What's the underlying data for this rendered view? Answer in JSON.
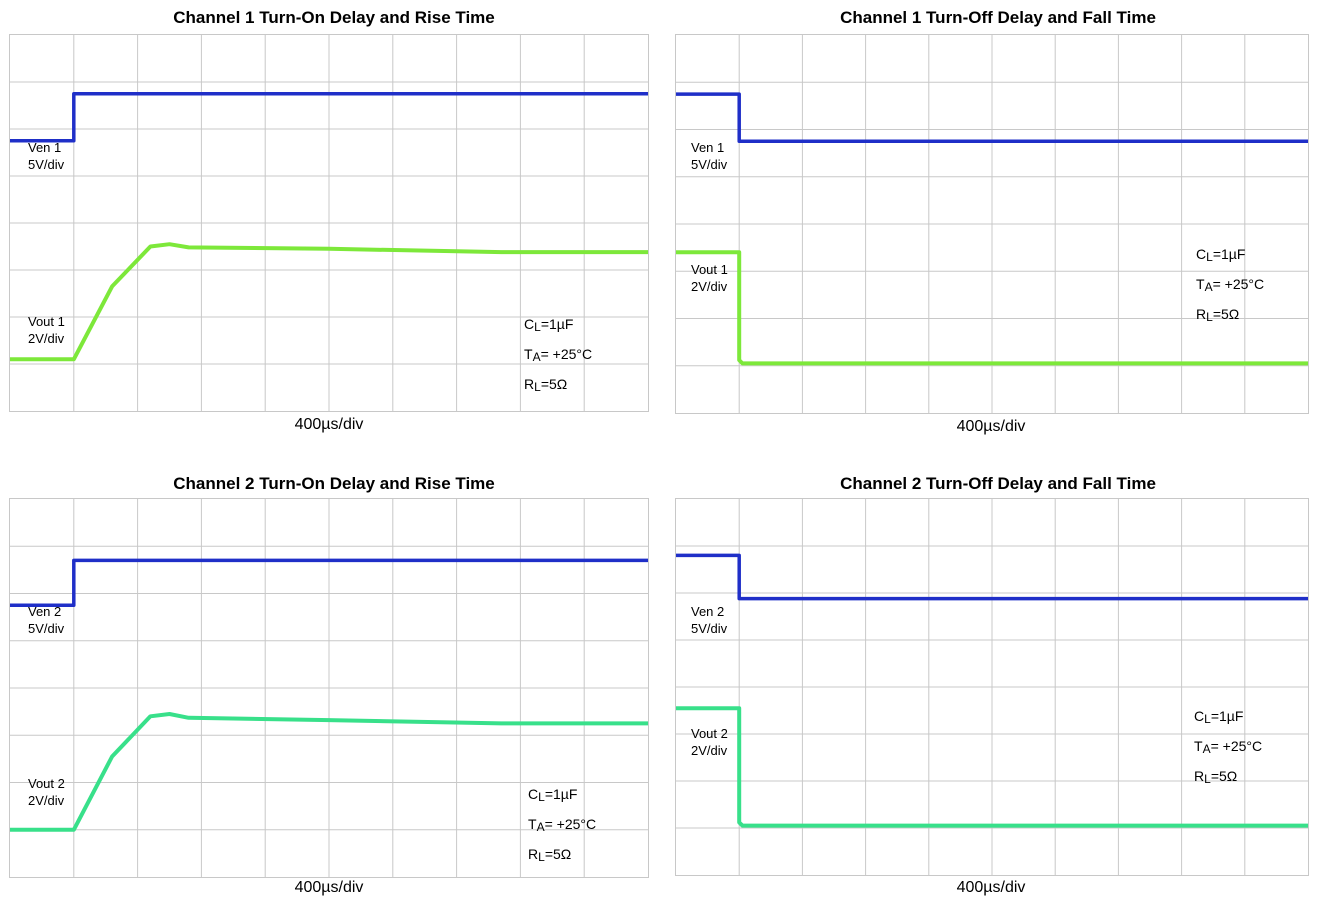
{
  "colors": {
    "ven": "#1f2fc8",
    "vout_green": "#7de83a",
    "vout_teal": "#38e08a",
    "grid": "#c8c8c8"
  },
  "chart_data": [
    {
      "type": "line",
      "title": "Channel 1 Turn-On Delay and Rise Time",
      "xlabel": "400µs/div",
      "xlim_div": [
        0,
        10
      ],
      "ylim_div": [
        0,
        8
      ],
      "grid": true,
      "series": [
        {
          "name": "Ven 1",
          "scale": "5V/div",
          "points": [
            [
              0,
              5.75
            ],
            [
              1,
              5.75
            ],
            [
              1,
              6.75
            ],
            [
              10,
              6.75
            ]
          ]
        },
        {
          "name": "Vout 1",
          "scale": "2V/div",
          "points": [
            [
              0,
              1.1
            ],
            [
              1,
              1.1
            ],
            [
              1.6,
              2.65
            ],
            [
              2.2,
              3.5
            ],
            [
              2.5,
              3.55
            ],
            [
              2.8,
              3.48
            ],
            [
              5,
              3.45
            ],
            [
              7.7,
              3.38
            ],
            [
              10,
              3.38
            ]
          ]
        }
      ],
      "labels": {
        "ven_name": "Ven 1",
        "ven_scale": "5V/div",
        "vout_name": "Vout 1",
        "vout_scale": "2V/div"
      },
      "conditions": {
        "cl": "1µF",
        "ta": "+25°C",
        "rl": "5Ω"
      }
    },
    {
      "type": "line",
      "title": "Channel 1 Turn-Off Delay and Fall Time",
      "xlabel": "400µs/div",
      "xlim_div": [
        0,
        10
      ],
      "ylim_div": [
        0,
        8
      ],
      "grid": true,
      "series": [
        {
          "name": "Ven 1",
          "scale": "5V/div",
          "points": [
            [
              0,
              6.75
            ],
            [
              1,
              6.75
            ],
            [
              1,
              5.75
            ],
            [
              10,
              5.75
            ]
          ]
        },
        {
          "name": "Vout 1",
          "scale": "2V/div",
          "points": [
            [
              0,
              3.4
            ],
            [
              1,
              3.4
            ],
            [
              1,
              1.12
            ],
            [
              1.05,
              1.05
            ],
            [
              10,
              1.05
            ]
          ]
        }
      ],
      "labels": {
        "ven_name": "Ven 1",
        "ven_scale": "5V/div",
        "vout_name": "Vout 1",
        "vout_scale": "2V/div"
      },
      "conditions": {
        "cl": "1µF",
        "ta": "+25°C",
        "rl": "5Ω"
      }
    },
    {
      "type": "line",
      "title": "Channel 2 Turn-On Delay and Rise Time",
      "xlabel": "400µs/div",
      "xlim_div": [
        0,
        10
      ],
      "ylim_div": [
        0,
        8
      ],
      "grid": true,
      "series": [
        {
          "name": "Ven 2",
          "scale": "5V/div",
          "points": [
            [
              0,
              5.75
            ],
            [
              1,
              5.75
            ],
            [
              1,
              6.7
            ],
            [
              10,
              6.7
            ]
          ]
        },
        {
          "name": "Vout 2",
          "scale": "2V/div",
          "points": [
            [
              0,
              1.0
            ],
            [
              1,
              1.0
            ],
            [
              1.6,
              2.55
            ],
            [
              2.2,
              3.4
            ],
            [
              2.5,
              3.45
            ],
            [
              2.8,
              3.37
            ],
            [
              5,
              3.32
            ],
            [
              7.7,
              3.25
            ],
            [
              10,
              3.25
            ]
          ]
        }
      ],
      "labels": {
        "ven_name": "Ven 2",
        "ven_scale": "5V/div",
        "vout_name": "Vout 2",
        "vout_scale": "2V/div"
      },
      "conditions": {
        "cl": "1µF",
        "ta": "+25°C",
        "rl": "5Ω"
      }
    },
    {
      "type": "line",
      "title": "Channel 2 Turn-Off Delay and Fall Time",
      "xlabel": "400µs/div",
      "xlim_div": [
        0,
        10
      ],
      "ylim_div": [
        0,
        8
      ],
      "grid": true,
      "series": [
        {
          "name": "Ven 2",
          "scale": "5V/div",
          "points": [
            [
              0,
              6.8
            ],
            [
              1,
              6.8
            ],
            [
              1,
              5.88
            ],
            [
              10,
              5.88
            ]
          ]
        },
        {
          "name": "Vout 2",
          "scale": "2V/div",
          "points": [
            [
              0,
              3.55
            ],
            [
              1,
              3.55
            ],
            [
              1,
              1.12
            ],
            [
              1.05,
              1.05
            ],
            [
              10,
              1.05
            ]
          ]
        }
      ],
      "labels": {
        "ven_name": "Ven 2",
        "ven_scale": "5V/div",
        "vout_name": "Vout 2",
        "vout_scale": "2V/div"
      },
      "conditions": {
        "cl": "1µF",
        "ta": "+25°C",
        "rl": "5Ω"
      }
    }
  ]
}
